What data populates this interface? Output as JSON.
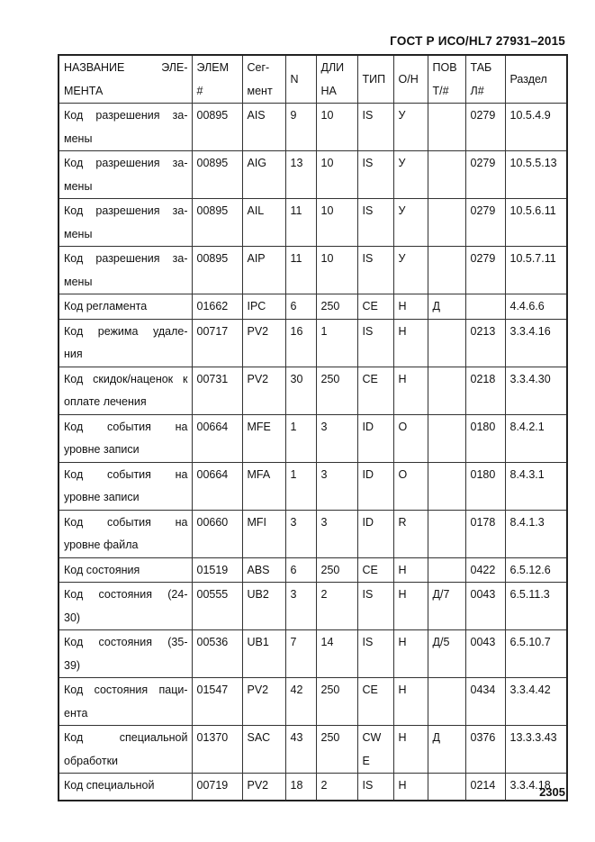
{
  "header": {
    "doc_code": "ГОСТ Р ИСО/HL7 27931–2015"
  },
  "table": {
    "columns": [
      [
        "НАЗВАНИЕ ЭЛЕ-",
        "МЕНТА"
      ],
      [
        "ЭЛЕМ",
        "#"
      ],
      [
        "Сег-",
        "мент"
      ],
      [
        "N"
      ],
      [
        "ДЛИ",
        "НА"
      ],
      [
        "ТИП"
      ],
      [
        "О/Н"
      ],
      [
        "ПОВ",
        "Т/#"
      ],
      [
        "ТАБ",
        "Л#"
      ],
      [
        "Раздел"
      ]
    ],
    "rows": [
      {
        "name": [
          "Код разрешения за-",
          "мены"
        ],
        "elem": "00895",
        "seg": "AIS",
        "n": "9",
        "len": "10",
        "type": "IS",
        "on": "У",
        "rep": "",
        "tbl": "0279",
        "sec": "10.5.4.9"
      },
      {
        "name": [
          "Код разрешения за-",
          "мены"
        ],
        "elem": "00895",
        "seg": "AIG",
        "n": "13",
        "len": "10",
        "type": "IS",
        "on": "У",
        "rep": "",
        "tbl": "0279",
        "sec": "10.5.5.13"
      },
      {
        "name": [
          "Код разрешения за-",
          "мены"
        ],
        "elem": "00895",
        "seg": "AIL",
        "n": "11",
        "len": "10",
        "type": "IS",
        "on": "У",
        "rep": "",
        "tbl": "0279",
        "sec": "10.5.6.11"
      },
      {
        "name": [
          "Код разрешения за-",
          "мены"
        ],
        "elem": "00895",
        "seg": "AIP",
        "n": "11",
        "len": "10",
        "type": "IS",
        "on": "У",
        "rep": "",
        "tbl": "0279",
        "sec": "10.5.7.11"
      },
      {
        "name": [
          "Код регламента"
        ],
        "elem": "01662",
        "seg": "IPC",
        "n": "6",
        "len": "250",
        "type": "CE",
        "on": "Н",
        "rep": "Д",
        "tbl": "",
        "sec": "4.4.6.6"
      },
      {
        "name": [
          "Код режима удале-",
          "ния"
        ],
        "elem": "00717",
        "seg": "PV2",
        "n": "16",
        "len": "1",
        "type": "IS",
        "on": "Н",
        "rep": "",
        "tbl": "0213",
        "sec": "3.3.4.16"
      },
      {
        "name": [
          "Код скидок/наценок к",
          "оплате лечения"
        ],
        "elem": "00731",
        "seg": "PV2",
        "n": "30",
        "len": "250",
        "type": "CE",
        "on": "Н",
        "rep": "",
        "tbl": "0218",
        "sec": "3.3.4.30"
      },
      {
        "name": [
          "Код события на",
          "уровне записи"
        ],
        "elem": "00664",
        "seg": "MFE",
        "n": "1",
        "len": "3",
        "type": "ID",
        "on": "O",
        "rep": "",
        "tbl": "0180",
        "sec": "8.4.2.1"
      },
      {
        "name": [
          "Код события на",
          "уровне записи"
        ],
        "elem": "00664",
        "seg": "MFA",
        "n": "1",
        "len": "3",
        "type": "ID",
        "on": "O",
        "rep": "",
        "tbl": "0180",
        "sec": "8.4.3.1"
      },
      {
        "name": [
          "Код события на",
          "уровне файла"
        ],
        "elem": "00660",
        "seg": "MFI",
        "n": "3",
        "len": "3",
        "type": "ID",
        "on": "R",
        "rep": "",
        "tbl": "0178",
        "sec": "8.4.1.3"
      },
      {
        "name": [
          "Код состояния"
        ],
        "elem": "01519",
        "seg": "ABS",
        "n": "6",
        "len": "250",
        "type": "CE",
        "on": "Н",
        "rep": "",
        "tbl": "0422",
        "sec": "6.5.12.6"
      },
      {
        "name": [
          "Код состояния (24-",
          "30)"
        ],
        "elem": "00555",
        "seg": "UB2",
        "n": "3",
        "len": "2",
        "type": "IS",
        "on": "Н",
        "rep": "Д/7",
        "tbl": "0043",
        "sec": "6.5.11.3"
      },
      {
        "name": [
          "Код состояния (35-",
          "39)"
        ],
        "elem": "00536",
        "seg": "UB1",
        "n": "7",
        "len": "14",
        "type": "IS",
        "on": "Н",
        "rep": "Д/5",
        "tbl": "0043",
        "sec": "6.5.10.7"
      },
      {
        "name": [
          "Код состояния паци-",
          "ента"
        ],
        "elem": "01547",
        "seg": "PV2",
        "n": "42",
        "len": "250",
        "type": "CE",
        "on": "Н",
        "rep": "",
        "tbl": "0434",
        "sec": "3.3.4.42"
      },
      {
        "name": [
          "Код специальной",
          "обработки"
        ],
        "elem": "01370",
        "seg": "SAC",
        "n": "43",
        "len": "250",
        "type": [
          "CW",
          "E"
        ],
        "on": "Н",
        "rep": "Д",
        "tbl": "0376",
        "sec": "13.3.3.43"
      },
      {
        "name": [
          "Код специальной"
        ],
        "elem": "00719",
        "seg": "PV2",
        "n": "18",
        "len": "2",
        "type": "IS",
        "on": "Н",
        "rep": "",
        "tbl": "0214",
        "sec": "3.3.4.18"
      }
    ]
  },
  "footer": {
    "page_number": "2305"
  }
}
